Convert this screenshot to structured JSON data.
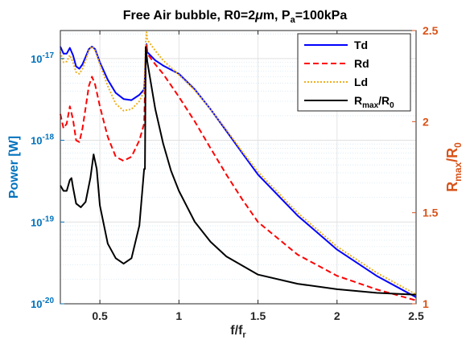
{
  "chart_data": {
    "type": "line",
    "title": "Free Air bubble, R0=2μm, P_a=100kPa",
    "title_parts": {
      "main": "Free Air bubble, R0=2",
      "mu": "μ",
      "unit": "m, P",
      "sub": "a",
      "tail": "=100kPa"
    },
    "xlabel": {
      "main": "f/f",
      "sub": "r"
    },
    "ylabel_left": "Power [W]",
    "ylabel_right": {
      "main": "R",
      "sub": "max",
      "mid": "/R",
      "sub2": "0"
    },
    "xlim": [
      0.25,
      2.5
    ],
    "ylim_left": [
      1e-20,
      2.2e-17
    ],
    "ylim_right": [
      1.0,
      2.5
    ],
    "yscale_left": "log",
    "grid": true,
    "legend_position": "top-right",
    "x_ticks": [
      "0.5",
      "1",
      "1.5",
      "2",
      "2.5"
    ],
    "y_left_ticks": [
      {
        "base": "10",
        "exp": "-20"
      },
      {
        "base": "10",
        "exp": "-19"
      },
      {
        "base": "10",
        "exp": "-18"
      },
      {
        "base": "10",
        "exp": "-17"
      }
    ],
    "y_right_ticks": [
      "1",
      "1.5",
      "2",
      "2.5"
    ],
    "series": [
      {
        "name": "Td",
        "axis": "left",
        "color": "#0000FF",
        "dash": "solid",
        "x": [
          0.25,
          0.27,
          0.29,
          0.31,
          0.33,
          0.35,
          0.37,
          0.39,
          0.41,
          0.43,
          0.45,
          0.47,
          0.5,
          0.55,
          0.6,
          0.65,
          0.7,
          0.75,
          0.78,
          0.785,
          0.79,
          0.795,
          0.8,
          0.85,
          0.9,
          1.0,
          1.1,
          1.2,
          1.3,
          1.4,
          1.5,
          1.75,
          2.0,
          2.25,
          2.5
        ],
        "y": [
          1.4e-17,
          1.15e-17,
          1.15e-17,
          1.35e-17,
          1.1e-17,
          8e-18,
          7.5e-18,
          8.5e-18,
          1.05e-17,
          1.3e-17,
          1.4e-17,
          1.3e-17,
          9e-18,
          5.5e-18,
          3.8e-18,
          3.2e-18,
          3.1e-18,
          3.6e-18,
          4.2e-18,
          6e-18,
          1.2e-17,
          1.5e-17,
          1.2e-17,
          9.5e-18,
          8.2e-18,
          6.5e-18,
          4.2e-18,
          2.4e-18,
          1.3e-18,
          7e-19,
          3.8e-19,
          1.2e-19,
          4.6e-20,
          2.2e-20,
          1.2e-20
        ]
      },
      {
        "name": "Rd",
        "axis": "left",
        "color": "#FF0000",
        "dash": "dashed",
        "x": [
          0.25,
          0.27,
          0.29,
          0.31,
          0.33,
          0.35,
          0.37,
          0.39,
          0.41,
          0.43,
          0.45,
          0.47,
          0.5,
          0.55,
          0.6,
          0.65,
          0.7,
          0.75,
          0.78,
          0.785,
          0.79,
          0.795,
          0.8,
          0.85,
          0.9,
          1.0,
          1.1,
          1.2,
          1.3,
          1.4,
          1.5,
          1.75,
          2.0,
          2.25,
          2.5
        ],
        "y": [
          2.1e-18,
          1.4e-18,
          1.6e-18,
          2.6e-18,
          1.8e-18,
          1e-18,
          9.5e-19,
          1.4e-18,
          2.5e-18,
          4.6e-18,
          6e-18,
          4.8e-18,
          2.6e-18,
          1.1e-18,
          6.3e-19,
          5.6e-19,
          6.3e-19,
          1e-18,
          1.6e-18,
          4e-18,
          1.2e-17,
          1.5e-17,
          1.15e-17,
          8.5e-18,
          6.5e-18,
          3.4e-18,
          1.7e-18,
          8e-19,
          3.8e-19,
          1.9e-19,
          1e-19,
          4e-20,
          2.2e-20,
          1.5e-20,
          1.1e-20
        ]
      },
      {
        "name": "Ld",
        "axis": "left",
        "color": "#EDB120",
        "dash": "dotted",
        "x": [
          0.25,
          0.27,
          0.29,
          0.31,
          0.33,
          0.35,
          0.37,
          0.39,
          0.41,
          0.43,
          0.45,
          0.47,
          0.5,
          0.55,
          0.6,
          0.65,
          0.7,
          0.75,
          0.78,
          0.785,
          0.79,
          0.795,
          0.8,
          0.85,
          0.9,
          1.0,
          1.1,
          1.2,
          1.3,
          1.4,
          1.5,
          1.75,
          2.0,
          2.25,
          2.5
        ],
        "y": [
          1.2e-17,
          9e-18,
          9.2e-18,
          1.1e-17,
          9e-18,
          6.8e-18,
          6.5e-18,
          7.5e-18,
          9.5e-18,
          1.25e-17,
          1.4e-17,
          1.25e-17,
          8.5e-18,
          4.6e-18,
          2.8e-18,
          2.3e-18,
          2.4e-18,
          3e-18,
          4e-18,
          8e-18,
          1.6e-17,
          2.1e-17,
          1.7e-17,
          1.25e-17,
          9.5e-18,
          6.3e-18,
          4.1e-18,
          2.4e-18,
          1.35e-18,
          7.3e-19,
          4.1e-19,
          1.3e-19,
          5e-20,
          2.4e-20,
          1.3e-20
        ]
      },
      {
        "name": "R_max/R_0",
        "axis": "right",
        "color": "#000000",
        "dash": "solid",
        "x": [
          0.25,
          0.27,
          0.29,
          0.31,
          0.32,
          0.33,
          0.35,
          0.38,
          0.41,
          0.44,
          0.46,
          0.48,
          0.5,
          0.55,
          0.6,
          0.65,
          0.7,
          0.75,
          0.78,
          0.785,
          0.79,
          0.8,
          0.85,
          0.9,
          0.95,
          1.0,
          1.1,
          1.2,
          1.3,
          1.5,
          1.75,
          2.0,
          2.25,
          2.5
        ],
        "y": [
          1.65,
          1.62,
          1.62,
          1.68,
          1.69,
          1.64,
          1.55,
          1.53,
          1.56,
          1.69,
          1.82,
          1.74,
          1.54,
          1.33,
          1.25,
          1.22,
          1.25,
          1.43,
          1.74,
          1.74,
          2.41,
          2.33,
          2.07,
          1.88,
          1.73,
          1.62,
          1.45,
          1.34,
          1.26,
          1.16,
          1.11,
          1.08,
          1.06,
          1.05
        ]
      }
    ]
  }
}
